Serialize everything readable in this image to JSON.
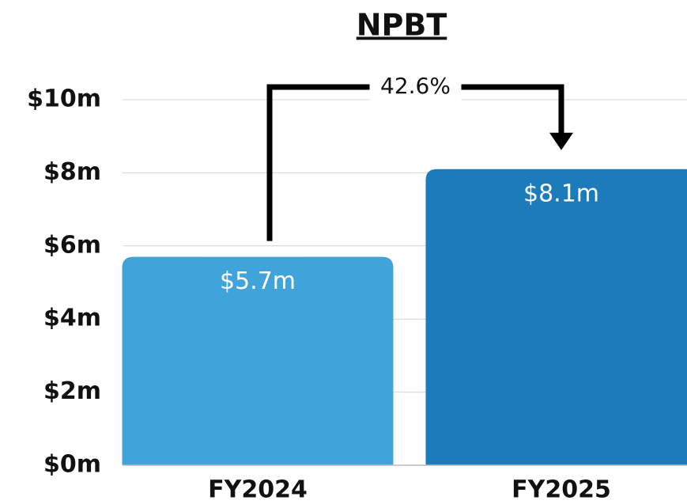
{
  "chart_data": {
    "type": "bar",
    "title": "NPBT",
    "categories": [
      "FY2024",
      "FY2025"
    ],
    "values": [
      5.7,
      8.1
    ],
    "value_labels": [
      "$5.7m",
      "$8.1m"
    ],
    "colors": [
      "#40a4da",
      "#1b7bbb"
    ],
    "ylim": [
      0,
      10
    ],
    "yticks": [
      {
        "value": 0,
        "label": "$0m"
      },
      {
        "value": 2,
        "label": "$2m"
      },
      {
        "value": 4,
        "label": "$4m"
      },
      {
        "value": 6,
        "label": "$6m"
      },
      {
        "value": 8,
        "label": "$8m"
      },
      {
        "value": 10,
        "label": "$10m"
      }
    ],
    "grid": true,
    "annotation": "42.6%"
  }
}
